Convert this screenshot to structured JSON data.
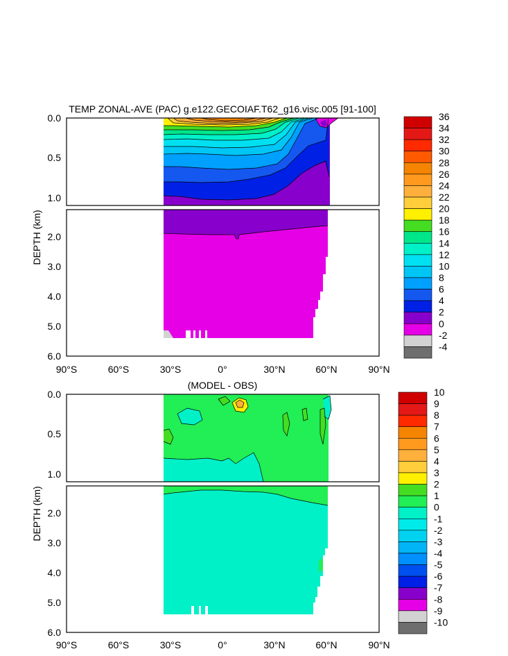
{
  "chart_data": [
    {
      "type": "heatmap",
      "title": "TEMP ZONAL-AVE (PAC) g.e122.GECOIAF.T62_g16.visc.005 [91-100]",
      "xlabel": "",
      "ylabel": "DEPTH (km)",
      "x_ticks": [
        "90°S",
        "60°S",
        "30°S",
        "0°",
        "30°N",
        "60°N",
        "90°N"
      ],
      "y_ticks_upper": [
        "0.0",
        "0.5",
        "1.0"
      ],
      "y_ticks_lower": [
        "2.0",
        "3.0",
        "4.0",
        "5.0",
        "6.0"
      ],
      "xlim": [
        -90,
        90
      ],
      "ylim_km": [
        0,
        6
      ],
      "colorbar_levels": [
        "36",
        "34",
        "32",
        "30",
        "28",
        "26",
        "24",
        "22",
        "20",
        "18",
        "16",
        "14",
        "12",
        "10",
        "8",
        "6",
        "4",
        "2",
        "0",
        "-2",
        "-4"
      ],
      "colorbar_colors": [
        "#d00000",
        "#e51818",
        "#ff2a00",
        "#ff5a00",
        "#f58400",
        "#ff9a1e",
        "#ffb03c",
        "#ffce3a",
        "#fff000",
        "#44dd22",
        "#00e68a",
        "#00f0c8",
        "#00e0f0",
        "#00c6f5",
        "#00a0ff",
        "#1458f0",
        "#0020e6",
        "#8800cc",
        "#e600e6",
        "#d2d2d2",
        "#6e6e6e"
      ]
    },
    {
      "type": "heatmap",
      "title": "(MODEL - OBS)",
      "xlabel": "",
      "ylabel": "DEPTH (km)",
      "x_ticks": [
        "90°S",
        "60°S",
        "30°S",
        "0°",
        "30°N",
        "60°N",
        "90°N"
      ],
      "y_ticks_upper": [
        "0.0",
        "0.5",
        "1.0"
      ],
      "y_ticks_lower": [
        "2.0",
        "3.0",
        "4.0",
        "5.0",
        "6.0"
      ],
      "xlim": [
        -90,
        90
      ],
      "ylim_km": [
        0,
        6
      ],
      "colorbar_levels": [
        "10",
        "9",
        "8",
        "7",
        "6",
        "5",
        "4",
        "3",
        "2",
        "1",
        "0",
        "-1",
        "-2",
        "-3",
        "-4",
        "-5",
        "-6",
        "-7",
        "-8",
        "-9",
        "-10"
      ],
      "colorbar_colors": [
        "#d00000",
        "#e51818",
        "#ff2a00",
        "#f58400",
        "#ff9a1e",
        "#ffb03c",
        "#ffce3a",
        "#fff000",
        "#44dd22",
        "#22ee55",
        "#00f0c8",
        "#00eaea",
        "#00d2f0",
        "#00b4f5",
        "#0090ff",
        "#0050f0",
        "#0020e6",
        "#8800cc",
        "#e600e6",
        "#d2d2d2",
        "#6e6e6e"
      ]
    }
  ]
}
